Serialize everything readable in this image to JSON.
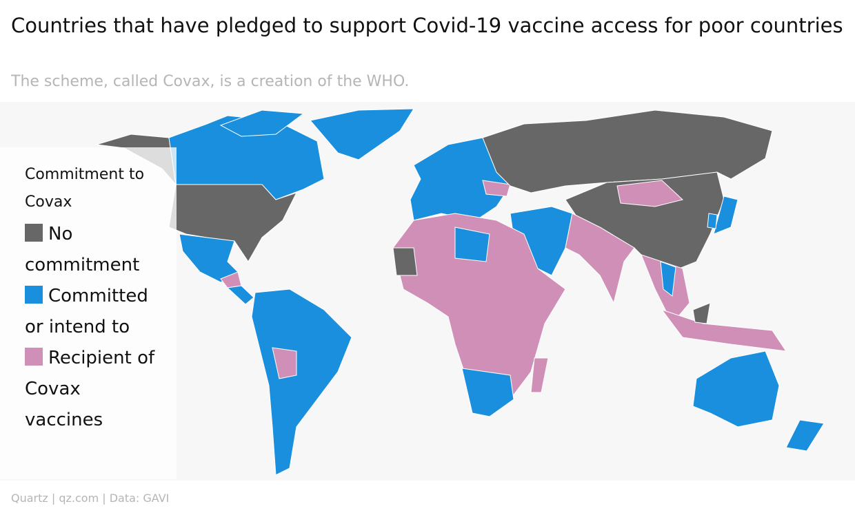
{
  "header": {
    "title": "Countries that have pledged to support Covid-19 vaccine access for poor countries",
    "subtitle": "The scheme, called Covax, is a creation of the WHO."
  },
  "legend": {
    "title": "Commitment to Covax",
    "items": [
      {
        "label": "No commitment",
        "color": "#676767"
      },
      {
        "label": "Committed or intend to",
        "color": "#1a8fdd"
      },
      {
        "label": "Recipient of Covax vaccines",
        "color": "#d08fb7"
      }
    ]
  },
  "footer": {
    "source": "Quartz | qz.com | Data: GAVI"
  }
}
